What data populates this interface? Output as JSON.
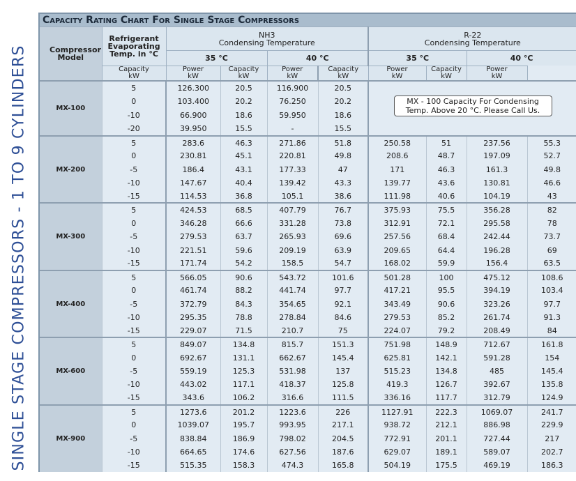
{
  "side_title": "SINGLE STAGE COMPRESSORS - 1 TO 9 CYLINDERS",
  "title": "Capacity Rating Chart For Single Stage Compressors",
  "header": {
    "compressor_model": "Compressor Model",
    "evaporating_temp": "Refrigerant Evaporating Temp. in °C",
    "groups": [
      {
        "name": "NH3",
        "subtitle": "Condensing Temperature",
        "temps": [
          "35 °C",
          "40 °C"
        ]
      },
      {
        "name": "R-22",
        "subtitle": "Condensing Temperature",
        "temps": [
          "35 °C",
          "40 °C"
        ]
      }
    ],
    "capacity": "Capacity",
    "power": "Power",
    "unit": "kW"
  },
  "models": [
    {
      "model": "MX-100",
      "note": "MX - 100 Capacity For Condensing Temp. Above 20 °C. Please Call Us.",
      "rows": [
        [
          "5",
          "126.300",
          "20.5",
          "116.900",
          "20.5"
        ],
        [
          "0",
          "103.400",
          "20.2",
          "76.250",
          "20.2"
        ],
        [
          "-10",
          "66.900",
          "18.6",
          "59.950",
          "18.6"
        ],
        [
          "-20",
          "39.950",
          "15.5",
          "-",
          "15.5"
        ]
      ]
    },
    {
      "model": "MX-200",
      "rows": [
        [
          "5",
          "283.6",
          "46.3",
          "271.86",
          "51.8",
          "250.58",
          "51",
          "237.56",
          "55.3"
        ],
        [
          "0",
          "230.81",
          "45.1",
          "220.81",
          "49.8",
          "208.6",
          "48.7",
          "197.09",
          "52.7"
        ],
        [
          "-5",
          "186.4",
          "43.1",
          "177.33",
          "47",
          "171",
          "46.3",
          "161.3",
          "49.8"
        ],
        [
          "-10",
          "147.67",
          "40.4",
          "139.42",
          "43.3",
          "139.77",
          "43.6",
          "130.81",
          "46.6"
        ],
        [
          "-15",
          "114.53",
          "36.8",
          "105.1",
          "38.6",
          "111.98",
          "40.6",
          "104.19",
          "43"
        ]
      ]
    },
    {
      "model": "MX-300",
      "rows": [
        [
          "5",
          "424.53",
          "68.5",
          "407.79",
          "76.7",
          "375.93",
          "75.5",
          "356.28",
          "82"
        ],
        [
          "0",
          "346.28",
          "66.6",
          "331.28",
          "73.8",
          "312.91",
          "72.1",
          "295.58",
          "78"
        ],
        [
          "-5",
          "279.53",
          "63.7",
          "265.93",
          "69.6",
          "257.56",
          "68.4",
          "242.44",
          "73.7"
        ],
        [
          "-10",
          "221.51",
          "59.6",
          "209.19",
          "63.9",
          "209.65",
          "64.4",
          "196.28",
          "69"
        ],
        [
          "-15",
          "171.74",
          "54.2",
          "158.5",
          "54.7",
          "168.02",
          "59.9",
          "156.4",
          "63.5"
        ]
      ]
    },
    {
      "model": "MX-400",
      "rows": [
        [
          "5",
          "566.05",
          "90.6",
          "543.72",
          "101.6",
          "501.28",
          "100",
          "475.12",
          "108.6"
        ],
        [
          "0",
          "461.74",
          "88.2",
          "441.74",
          "97.7",
          "417.21",
          "95.5",
          "394.19",
          "103.4"
        ],
        [
          "-5",
          "372.79",
          "84.3",
          "354.65",
          "92.1",
          "343.49",
          "90.6",
          "323.26",
          "97.7"
        ],
        [
          "-10",
          "295.35",
          "78.8",
          "278.84",
          "84.6",
          "279.53",
          "85.2",
          "261.74",
          "91.3"
        ],
        [
          "-15",
          "229.07",
          "71.5",
          "210.7",
          "75",
          "224.07",
          "79.2",
          "208.49",
          "84"
        ]
      ]
    },
    {
      "model": "MX-600",
      "rows": [
        [
          "5",
          "849.07",
          "134.8",
          "815.7",
          "151.3",
          "751.98",
          "148.9",
          "712.67",
          "161.8"
        ],
        [
          "0",
          "692.67",
          "131.1",
          "662.67",
          "145.4",
          "625.81",
          "142.1",
          "591.28",
          "154"
        ],
        [
          "-5",
          "559.19",
          "125.3",
          "531.98",
          "137",
          "515.23",
          "134.8",
          "485",
          "145.4"
        ],
        [
          "-10",
          "443.02",
          "117.1",
          "418.37",
          "125.8",
          "419.3",
          "126.7",
          "392.67",
          "135.8"
        ],
        [
          "-15",
          "343.6",
          "106.2",
          "316.6",
          "111.5",
          "336.16",
          "117.7",
          "312.79",
          "124.9"
        ]
      ]
    },
    {
      "model": "MX-900",
      "rows": [
        [
          "5",
          "1273.6",
          "201.2",
          "1223.6",
          "226",
          "1127.91",
          "222.3",
          "1069.07",
          "241.7"
        ],
        [
          "0",
          "1039.07",
          "195.7",
          "993.95",
          "217.1",
          "938.72",
          "212.1",
          "886.98",
          "229.9"
        ],
        [
          "-5",
          "838.84",
          "186.9",
          "798.02",
          "204.5",
          "772.91",
          "201.1",
          "727.44",
          "217"
        ],
        [
          "-10",
          "664.65",
          "174.6",
          "627.56",
          "187.6",
          "629.07",
          "189.1",
          "589.07",
          "202.7"
        ],
        [
          "-15",
          "515.35",
          "158.3",
          "474.3",
          "165.8",
          "504.19",
          "175.5",
          "469.19",
          "186.3"
        ]
      ]
    }
  ]
}
